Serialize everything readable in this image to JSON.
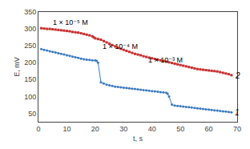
{
  "chart_data": {
    "type": "line",
    "xlabel": "t, s",
    "ylabel": "E, mV",
    "xlim": [
      0,
      70
    ],
    "ylim": [
      25,
      350
    ],
    "xticks": [
      0,
      10,
      20,
      30,
      40,
      50,
      60,
      70
    ],
    "yticks": [
      50,
      100,
      150,
      200,
      250,
      300,
      350
    ],
    "grid": false,
    "series": [
      {
        "color": "#c93030",
        "marker": "square",
        "x": [
          1,
          2,
          3,
          4,
          5,
          6,
          7,
          8,
          9,
          10,
          11,
          12,
          13,
          14,
          15,
          16,
          17,
          18,
          19,
          19.5,
          20,
          21,
          22,
          23,
          24,
          25,
          26,
          27,
          28,
          29,
          30,
          31,
          32,
          33,
          34,
          35,
          36,
          37,
          38,
          39,
          40,
          41,
          42,
          43,
          44,
          45,
          46,
          47,
          48,
          49,
          50,
          51,
          52,
          53,
          54,
          55,
          56,
          57,
          58,
          59,
          60,
          61,
          62,
          63,
          64,
          65,
          66,
          67,
          68
        ],
        "values": [
          302,
          301,
          300,
          300,
          299,
          298,
          297,
          296,
          295,
          294,
          293,
          291,
          290,
          289,
          287,
          285,
          283,
          281,
          278,
          275,
          272,
          270,
          268,
          264,
          260,
          256,
          252,
          248,
          244,
          241,
          238,
          235,
          232,
          229,
          226,
          224,
          222,
          219,
          217,
          215,
          213,
          211,
          209,
          207,
          205,
          203,
          201,
          199,
          197,
          195,
          193,
          191,
          189,
          187,
          185,
          183,
          181,
          180,
          179,
          178,
          177,
          176,
          175,
          174,
          172,
          170,
          168,
          166,
          163
        ]
      },
      {
        "color": "#3a7abf",
        "marker": "circle",
        "x": [
          1,
          2,
          3,
          4,
          5,
          6,
          7,
          8,
          9,
          10,
          11,
          12,
          13,
          14,
          15,
          16,
          17,
          18,
          19,
          20,
          20.5,
          21,
          22,
          23,
          24,
          25,
          26,
          27,
          28,
          29,
          30,
          31,
          32,
          33,
          34,
          35,
          36,
          37,
          38,
          39,
          40,
          41,
          42,
          43,
          44,
          45,
          45.5,
          46,
          47,
          48,
          49,
          50,
          51,
          52,
          53,
          54,
          55,
          56,
          57,
          58,
          59,
          60,
          61,
          62,
          63,
          64,
          65,
          66,
          67,
          68
        ],
        "values": [
          240,
          238,
          236,
          234,
          232,
          230,
          228,
          226,
          224,
          222,
          220,
          218,
          216,
          214,
          212,
          210,
          209,
          208,
          207,
          207,
          205,
          200,
          142,
          138,
          135,
          133,
          131,
          129,
          128,
          127,
          126,
          125,
          124,
          123,
          122,
          121,
          120,
          119,
          118,
          117,
          116,
          115,
          114,
          113,
          112,
          111,
          108,
          100,
          76,
          73,
          72,
          71,
          70,
          69,
          68,
          67,
          66,
          65,
          64,
          63,
          62,
          61,
          60,
          59,
          58,
          57,
          56,
          55,
          54,
          53
        ]
      }
    ],
    "annotations": [
      {
        "text": "1 × 10⁻⁵ M",
        "x": 4.5,
        "y": 318
      },
      {
        "text": "1 × 10⁻⁴ M",
        "x": 22,
        "y": 248
      },
      {
        "text": "1 × 10⁻³ M",
        "x": 38,
        "y": 208
      },
      {
        "text": "1",
        "x": 68.5,
        "y": 53,
        "style": "italic"
      },
      {
        "text": "2",
        "x": 68.5,
        "y": 162,
        "style": "italic"
      }
    ]
  }
}
